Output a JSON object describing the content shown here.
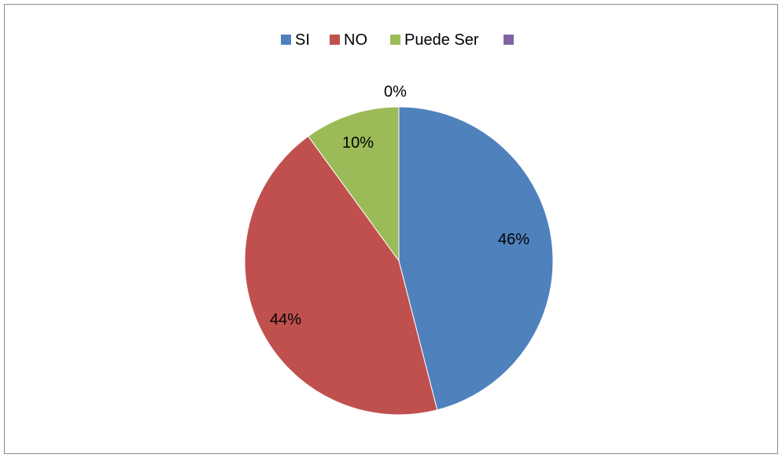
{
  "chart_data": {
    "type": "pie",
    "title": "",
    "categories": [
      "SI",
      "NO",
      "Puede Ser",
      ""
    ],
    "values": [
      46,
      44,
      10,
      0
    ],
    "data_labels": [
      "46%",
      "44%",
      "10%",
      "0%"
    ],
    "colors": [
      "#4f81bd",
      "#c0504d",
      "#9bbb59",
      "#8064a2"
    ],
    "legend_position": "top",
    "start_angle_deg": 0,
    "direction": "clockwise"
  }
}
